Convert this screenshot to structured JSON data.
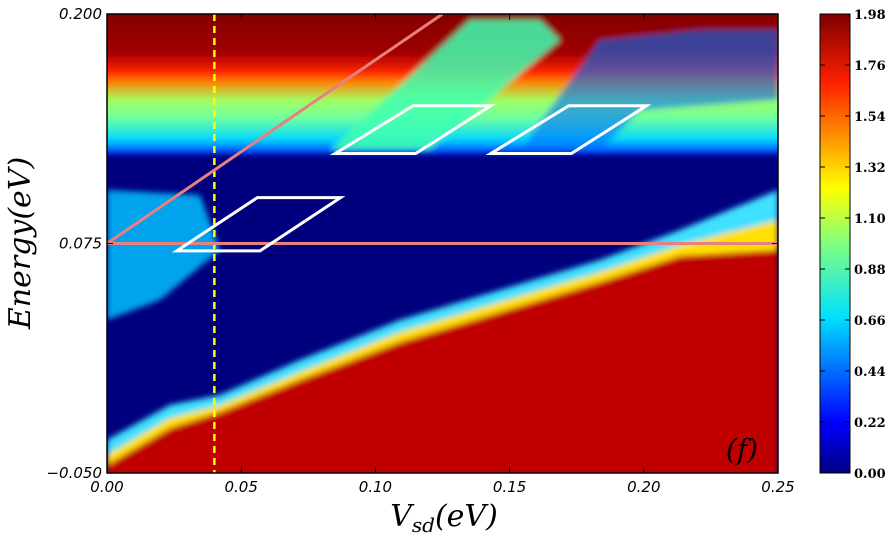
{
  "chart_data": {
    "type": "heatmap",
    "title": "",
    "xlabel": "V_sd(eV)",
    "ylabel": "Energy(eV)",
    "xlim": [
      0.0,
      0.25
    ],
    "ylim": [
      -0.05,
      0.2
    ],
    "x_ticks": [
      "0.00",
      "0.05",
      "0.10",
      "0.15",
      "0.20",
      "0.25"
    ],
    "x_tick_values": [
      0.0,
      0.05,
      0.1,
      0.15,
      0.2,
      0.25
    ],
    "y_ticks": [
      "−0.050",
      "0.075",
      "0.200"
    ],
    "y_tick_values": [
      -0.05,
      0.075,
      0.2
    ],
    "colorbar": {
      "min": 0.0,
      "max": 1.98,
      "ticks": [
        "0.00",
        "0.22",
        "0.44",
        "0.66",
        "0.88",
        "1.10",
        "1.32",
        "1.54",
        "1.76",
        "1.98"
      ],
      "tick_values": [
        0.0,
        0.22,
        0.44,
        0.66,
        0.88,
        1.1,
        1.32,
        1.54,
        1.76,
        1.98
      ],
      "colormap": "jet"
    },
    "annotation": "(f)",
    "value_regions": [
      {
        "region": "upper band E > 0.181",
        "value": 1.98
      },
      {
        "region": "band 0.160 < E < 0.171",
        "value": 0.95
      },
      {
        "region": "lower-right region below rising edge",
        "value": 1.98
      },
      {
        "region": "central gap",
        "value": 0.0
      }
    ],
    "rising_edge": {
      "x": [
        0.0,
        0.04,
        0.1,
        0.2,
        0.25
      ],
      "y": [
        -0.048,
        -0.013,
        0.02,
        0.06,
        0.075
      ]
    },
    "lines": [
      {
        "kind": "vertical-dashed",
        "color": "#ffff00",
        "x": 0.04
      },
      {
        "kind": "horizontal",
        "color": "#e88080",
        "y": 0.075
      },
      {
        "kind": "diagonal",
        "color": "#e88080",
        "x": [
          0.0,
          0.125
        ],
        "y": [
          0.075,
          0.2
        ]
      }
    ],
    "parallelograms": [
      {
        "x": [
          0.026,
          0.057,
          0.087,
          0.056
        ],
        "y": [
          0.071,
          0.071,
          0.1,
          0.1
        ]
      },
      {
        "x": [
          0.085,
          0.115,
          0.143,
          0.114
        ],
        "y": [
          0.124,
          0.124,
          0.15,
          0.15
        ]
      },
      {
        "x": [
          0.143,
          0.173,
          0.201,
          0.172
        ],
        "y": [
          0.124,
          0.124,
          0.15,
          0.15
        ]
      }
    ],
    "colors": {
      "low": "#00007f",
      "high": "#7f0000",
      "guide_yellow": "#ffff00",
      "guide_pink": "#e88080",
      "parallelogram": "#ffffff"
    }
  }
}
